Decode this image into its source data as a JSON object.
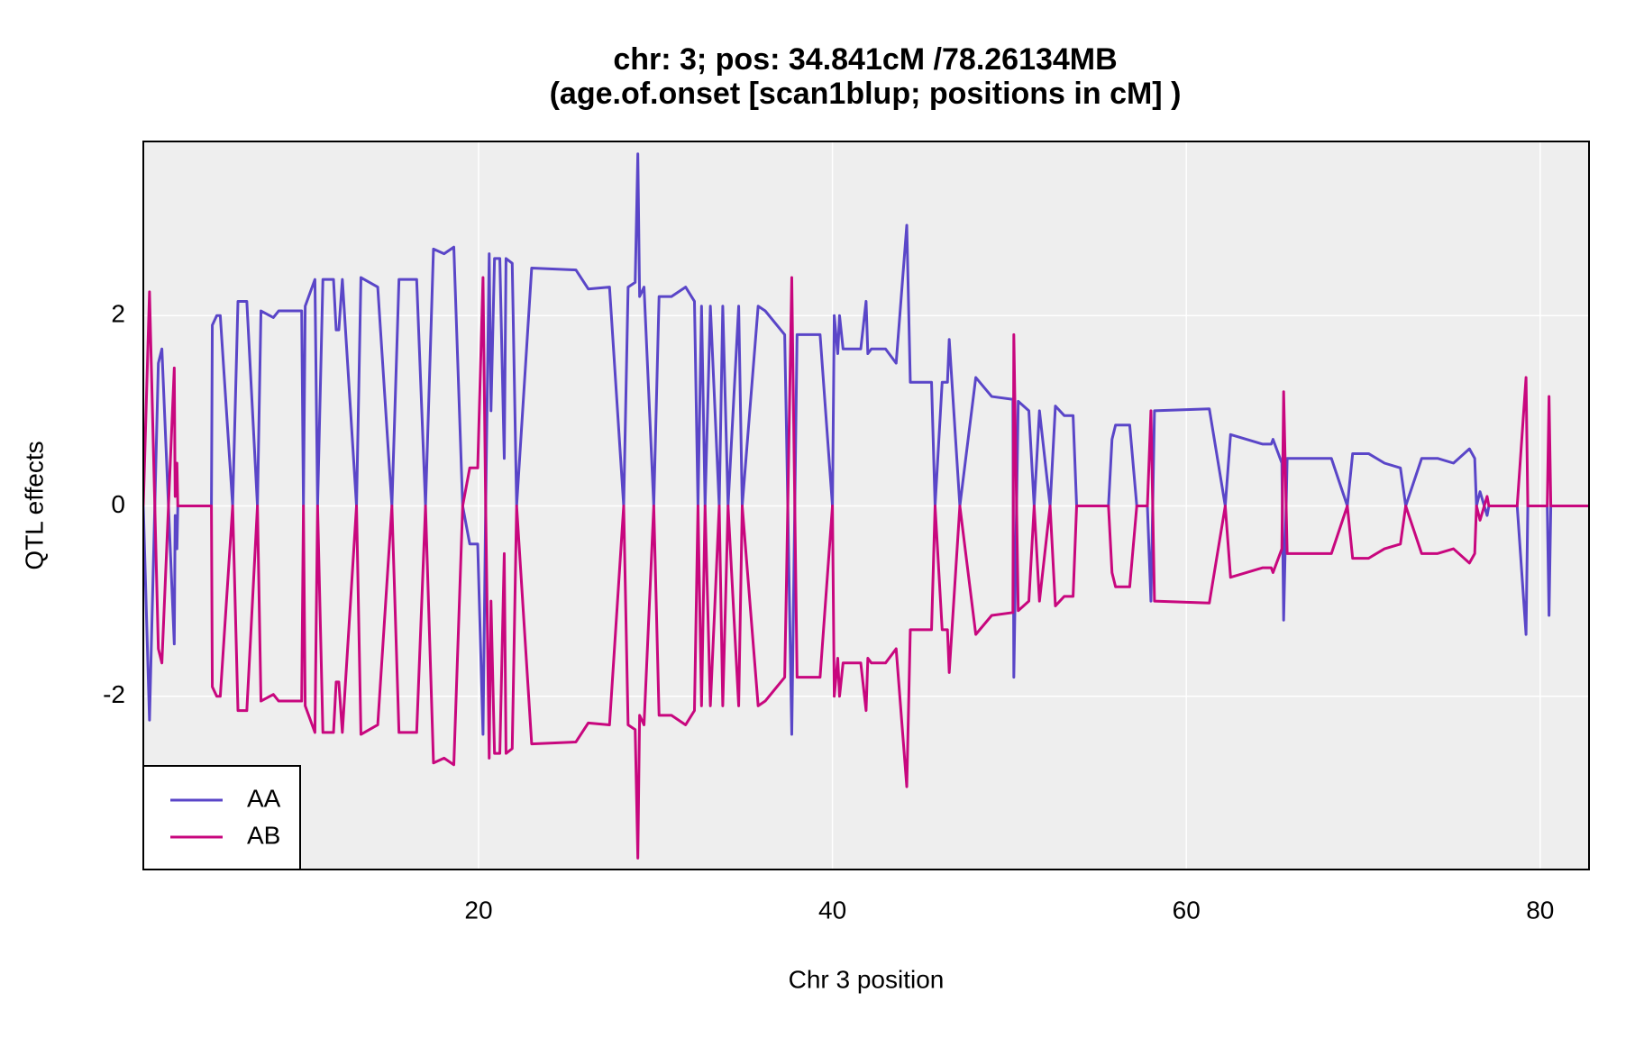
{
  "chart_data": {
    "type": "line",
    "title": "chr: 3; pos: 34.841cM /78.26134MB",
    "subtitle": "(age.of.onset [scan1blup; positions in cM] )",
    "x_label": "Chr 3 position",
    "y_label": "QTL effects",
    "xlim": [
      1.05,
      82.76
    ],
    "ylim": [
      -3.82,
      3.83
    ],
    "xticks": [
      20,
      40,
      60,
      80
    ],
    "yticks": [
      -2,
      0,
      2
    ],
    "grid": true,
    "background": "#eeeeee",
    "legend": "bottom-left",
    "x": [
      1.05,
      1.4,
      1.9,
      2.1,
      2.8,
      2.85,
      2.95,
      3.0,
      4.9,
      4.95,
      5.2,
      5.4,
      6.1,
      6.4,
      6.9,
      7.5,
      7.7,
      8.4,
      8.7,
      10.0,
      10.1,
      10.2,
      10.75,
      10.9,
      11.2,
      11.8,
      11.95,
      12.1,
      12.3,
      13.1,
      13.35,
      14.3,
      15.1,
      15.5,
      16.5,
      17.0,
      17.45,
      18.05,
      18.6,
      19.1,
      19.5,
      19.95,
      20.25,
      20.4,
      20.6,
      20.7,
      20.9,
      21.2,
      21.45,
      21.55,
      21.9,
      22.15,
      23.0,
      25.5,
      26.2,
      27.4,
      28.2,
      28.45,
      28.85,
      29.0,
      29.1,
      29.35,
      29.9,
      30.2,
      30.9,
      31.7,
      32.2,
      32.4,
      32.6,
      32.8,
      33.1,
      33.6,
      33.8,
      34.1,
      34.7,
      34.9,
      35.8,
      36.2,
      37.3,
      37.4,
      37.7,
      38.0,
      39.3,
      40.0,
      40.1,
      40.3,
      40.4,
      40.6,
      41.6,
      41.9,
      42.0,
      42.2,
      43.0,
      43.6,
      44.2,
      44.4,
      45.6,
      45.8,
      46.2,
      46.5,
      46.6,
      47.2,
      48.1,
      49.0,
      50.2,
      50.25,
      50.5,
      51.1,
      51.4,
      51.7,
      52.3,
      52.6,
      53.1,
      53.6,
      53.8,
      55.6,
      55.8,
      56.0,
      56.8,
      57.2,
      57.8,
      58.0,
      58.2,
      61.3,
      62.2,
      62.5,
      63.4,
      64.3,
      64.8,
      64.9,
      65.4,
      65.5,
      65.7,
      68.2,
      69.1,
      69.4,
      70.3,
      71.2,
      72.1,
      72.4,
      73.3,
      74.2,
      75.1,
      76.0,
      76.3,
      76.4,
      76.6,
      77.0,
      77.1,
      78.7,
      79.2,
      79.3,
      80.4,
      80.5,
      80.6,
      82.76
    ],
    "series": [
      {
        "name": "AA",
        "color": "#5a46c8",
        "values": [
          0,
          -2.25,
          1.5,
          1.65,
          -1.45,
          -0.1,
          -0.45,
          0,
          0,
          1.9,
          2.0,
          2.0,
          0,
          2.15,
          2.15,
          0,
          2.05,
          1.98,
          2.05,
          2.05,
          0,
          2.1,
          2.38,
          0,
          2.38,
          2.38,
          1.85,
          1.85,
          2.38,
          0,
          2.4,
          2.3,
          0,
          2.38,
          2.38,
          0,
          2.7,
          2.65,
          2.72,
          0,
          -0.4,
          -0.4,
          -2.4,
          0,
          2.65,
          1.0,
          2.6,
          2.6,
          0.5,
          2.6,
          2.55,
          0,
          2.5,
          2.48,
          2.28,
          2.3,
          0,
          2.3,
          2.35,
          3.7,
          2.2,
          2.3,
          0,
          2.2,
          2.2,
          2.3,
          2.15,
          0,
          2.1,
          0,
          2.1,
          0,
          2.1,
          0,
          2.1,
          0,
          2.1,
          2.05,
          1.8,
          0.8,
          -2.4,
          1.8,
          1.8,
          0,
          2.0,
          1.6,
          2.0,
          1.65,
          1.65,
          2.15,
          1.6,
          1.65,
          1.65,
          1.5,
          2.95,
          1.3,
          1.3,
          0,
          1.3,
          1.3,
          1.75,
          0,
          1.35,
          1.15,
          1.12,
          -1.8,
          1.1,
          1.0,
          0,
          1.0,
          0,
          1.05,
          0.95,
          0.95,
          0,
          0,
          0.7,
          0.85,
          0.85,
          0,
          0,
          -1.0,
          1.0,
          1.02,
          0,
          0.75,
          0.7,
          0.65,
          0.65,
          0.7,
          0.45,
          -1.2,
          0.5,
          0.5,
          0,
          0.55,
          0.55,
          0.45,
          0.4,
          0,
          0.5,
          0.5,
          0.45,
          0.6,
          0.5,
          0,
          0.15,
          -0.1,
          0,
          0,
          -1.35,
          0,
          0,
          -1.15,
          0,
          0
        ]
      },
      {
        "name": "AB",
        "color": "#c8077e",
        "values": [
          0,
          2.25,
          -1.5,
          -1.65,
          1.45,
          0.1,
          0.45,
          0,
          0,
          -1.9,
          -2.0,
          -2.0,
          0,
          -2.15,
          -2.15,
          0,
          -2.05,
          -1.98,
          -2.05,
          -2.05,
          0,
          -2.1,
          -2.38,
          0,
          -2.38,
          -2.38,
          -1.85,
          -1.85,
          -2.38,
          0,
          -2.4,
          -2.3,
          0,
          -2.38,
          -2.38,
          0,
          -2.7,
          -2.65,
          -2.72,
          0,
          0.4,
          0.4,
          2.4,
          0,
          -2.65,
          -1.0,
          -2.6,
          -2.6,
          -0.5,
          -2.6,
          -2.55,
          0,
          -2.5,
          -2.48,
          -2.28,
          -2.3,
          0,
          -2.3,
          -2.35,
          -3.7,
          -2.2,
          -2.3,
          0,
          -2.2,
          -2.2,
          -2.3,
          -2.15,
          0,
          -2.1,
          0,
          -2.1,
          0,
          -2.1,
          0,
          -2.1,
          0,
          -2.1,
          -2.05,
          -1.8,
          -0.8,
          2.4,
          -1.8,
          -1.8,
          0,
          -2.0,
          -1.6,
          -2.0,
          -1.65,
          -1.65,
          -2.15,
          -1.6,
          -1.65,
          -1.65,
          -1.5,
          -2.95,
          -1.3,
          -1.3,
          0,
          -1.3,
          -1.3,
          -1.75,
          0,
          -1.35,
          -1.15,
          -1.12,
          1.8,
          -1.1,
          -1.0,
          0,
          -1.0,
          0,
          -1.05,
          -0.95,
          -0.95,
          0,
          0,
          -0.7,
          -0.85,
          -0.85,
          0,
          0,
          1.0,
          -1.0,
          -1.02,
          0,
          -0.75,
          -0.7,
          -0.65,
          -0.65,
          -0.7,
          -0.45,
          1.2,
          -0.5,
          -0.5,
          0,
          -0.55,
          -0.55,
          -0.45,
          -0.4,
          0,
          -0.5,
          -0.5,
          -0.45,
          -0.6,
          -0.5,
          0,
          -0.15,
          0.1,
          0,
          0,
          1.35,
          0,
          0,
          1.15,
          0,
          0
        ]
      }
    ]
  }
}
